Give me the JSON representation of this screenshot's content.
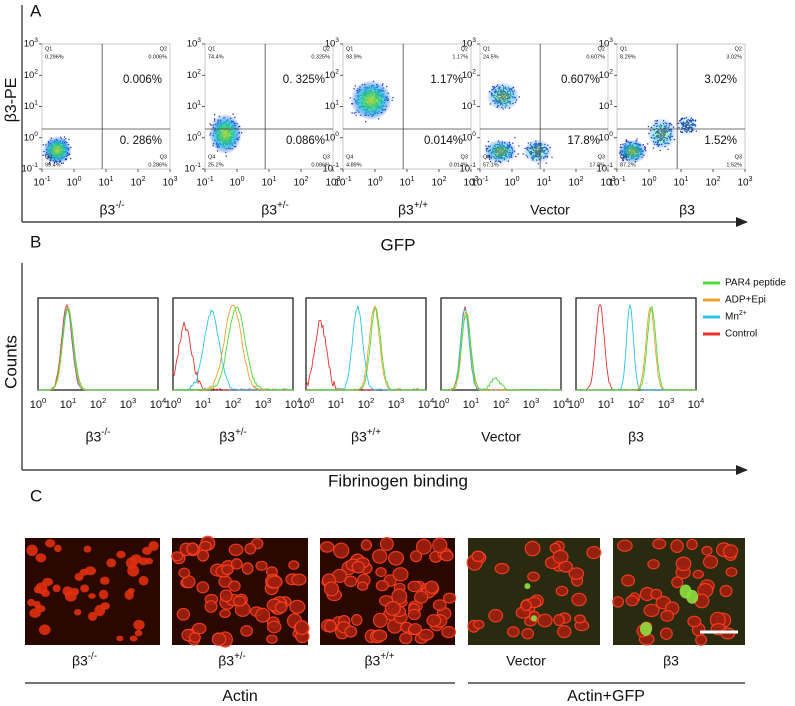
{
  "panel_a": {
    "label": "A",
    "y_axis_label": "β3-PE",
    "x_axis_label": "GFP",
    "y_ticks": [
      "103",
      "102",
      "101",
      "100",
      "10-1"
    ],
    "x_ticks": [
      "10-1",
      "100",
      "101",
      "102",
      "103"
    ],
    "quadrants": [
      "Q1",
      "Q2",
      "Q3",
      "Q4"
    ],
    "plots": [
      {
        "genotype": "β3-/-",
        "q1_value": "0.296%",
        "q2_value": "0.006%",
        "q3_value": "0.286%",
        "q4_value": "99.4%",
        "upper_right": "0.006%",
        "lower_right": "0. 286%"
      },
      {
        "genotype": "β3+/-",
        "q1_value": "74.4%",
        "q2_value": "0.325%",
        "q3_value": "0.086%",
        "q4_value": "25.2%",
        "upper_right": "0. 325%",
        "lower_right": "0.086%"
      },
      {
        "genotype": "β3+/+",
        "q1_value": "93.9%",
        "q2_value": "1.17%",
        "q3_value": "0.014%",
        "q4_value": "4.89%",
        "upper_right": "1.17%",
        "lower_right": "0.014%"
      },
      {
        "genotype": "Vector",
        "q1_value": "24.5%",
        "q2_value": "0.607%",
        "q3_value": "17.8%",
        "q4_value": "57.1%",
        "upper_right": "0.607%",
        "lower_right": "17.8%"
      },
      {
        "genotype": "β3",
        "q1_value": "8.29%",
        "q2_value": "3.02%",
        "q3_value": "1.52%",
        "q4_value": "87.2%",
        "upper_right": "3.02%",
        "lower_right": "1.52%"
      }
    ]
  },
  "panel_b": {
    "label": "B",
    "y_axis_label": "Counts",
    "x_axis_label": "Fibrinogen binding",
    "x_ticks": [
      "100",
      "101",
      "102",
      "103",
      "104"
    ],
    "genotypes": [
      "β3-/-",
      "β3+/-",
      "β3+/+",
      "Vector",
      "β3"
    ],
    "legend": [
      {
        "name": "PAR4 peptide",
        "color": "#4ddc3c"
      },
      {
        "name": "ADP+Epi",
        "color": "#f0a030"
      },
      {
        "name": "Mn2+",
        "color": "#29c4e8"
      },
      {
        "name": "Control",
        "color": "#e8302e"
      }
    ]
  },
  "panel_c": {
    "label": "C",
    "genotypes": [
      "β3-/-",
      "β3+/-",
      "β3+/+",
      "Vector",
      "β3"
    ],
    "groups": [
      "Actin",
      "Actin+GFP"
    ]
  }
}
